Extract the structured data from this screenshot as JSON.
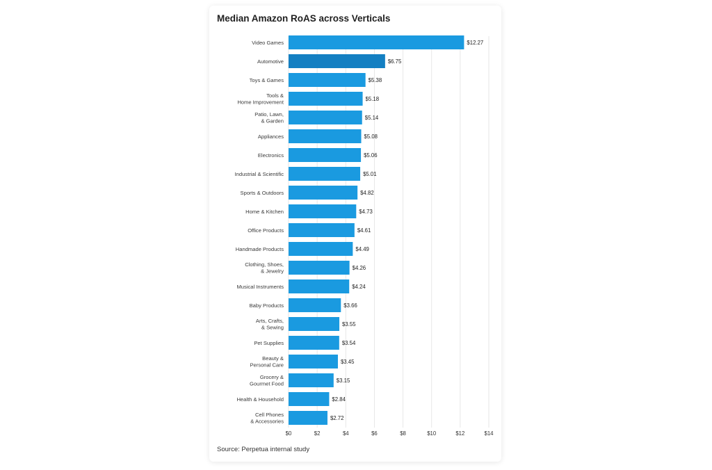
{
  "chart_data": {
    "type": "bar",
    "orientation": "horizontal",
    "title": "Median Amazon RoAS across Verticals",
    "source": "Source: Perpetua internal study",
    "categories": [
      [
        "Video Games"
      ],
      [
        "Automotive"
      ],
      [
        "Toys & Games"
      ],
      [
        "Tools &",
        "Home Improvement"
      ],
      [
        "Patio, Lawn,",
        "& Garden"
      ],
      [
        "Appliances"
      ],
      [
        "Electronics"
      ],
      [
        "Industrial & Scientific"
      ],
      [
        "Sports & Outdoors"
      ],
      [
        "Home & Kitchen"
      ],
      [
        "Office Products"
      ],
      [
        "Handmade Products"
      ],
      [
        "Clothing, Shoes,",
        "& Jewelry"
      ],
      [
        "Musical Instruments"
      ],
      [
        "Baby Products"
      ],
      [
        "Arts, Crafts,",
        "& Sewing"
      ],
      [
        "Pet Supplies"
      ],
      [
        "Beauty &",
        "Personal Care"
      ],
      [
        "Grocery &",
        "Gourmet Food"
      ],
      [
        "Health & Household"
      ],
      [
        "Cell Phones",
        "& Accessories"
      ]
    ],
    "values": [
      12.27,
      6.75,
      5.38,
      5.18,
      5.14,
      5.08,
      5.06,
      5.01,
      4.82,
      4.73,
      4.61,
      4.49,
      4.26,
      4.24,
      3.66,
      3.55,
      3.54,
      3.45,
      3.15,
      2.84,
      2.72
    ],
    "value_labels": [
      "$12.27",
      "$6.75",
      "$5.38",
      "$5.18",
      "$5.14",
      "$5.08",
      "$5.06",
      "$5.01",
      "$4.82",
      "$4.73",
      "$4.61",
      "$4.49",
      "$4.26",
      "$4.24",
      "$3.66",
      "$3.55",
      "$3.54",
      "$3.45",
      "$3.15",
      "$2.84",
      "$2.72"
    ],
    "xticks": [
      0,
      2,
      4,
      6,
      8,
      10,
      12,
      14
    ],
    "xtick_labels": [
      "$0",
      "$2",
      "$4",
      "$6",
      "$8",
      "$10",
      "$12",
      "$14"
    ],
    "xlim": [
      0,
      14
    ],
    "grid": true,
    "colors": {
      "bar": "#1a9ae0",
      "bar_highlight": "#137fc2",
      "grid": "#e6e6e6"
    },
    "highlight_index": 1
  }
}
